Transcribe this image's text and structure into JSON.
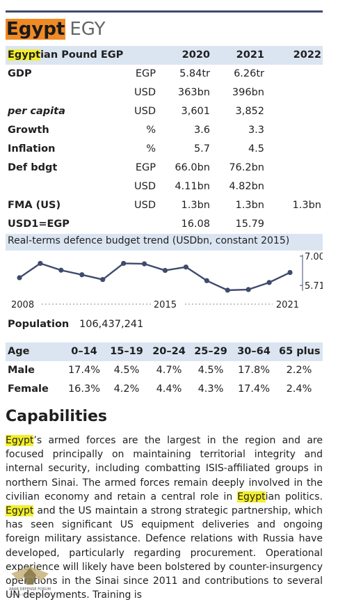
{
  "country": {
    "name": "Egypt",
    "code": "EGY"
  },
  "economics": {
    "currency_prefix": "Egypt",
    "currency_suffix": "ian Pound EGP",
    "years": [
      "2020",
      "2021",
      "2022"
    ],
    "rows": [
      {
        "label": "GDP",
        "style": "bold",
        "unit": "EGP",
        "v2020": "5.84tr",
        "v2021": "6.26tr",
        "v2022": ""
      },
      {
        "label": "",
        "style": "bold",
        "unit": "USD",
        "v2020": "363bn",
        "v2021": "396bn",
        "v2022": ""
      },
      {
        "label": "per capita",
        "style": "ital",
        "unit": "USD",
        "v2020": "3,601",
        "v2021": "3,852",
        "v2022": ""
      },
      {
        "label": "Growth",
        "style": "bold",
        "unit": "%",
        "v2020": "3.6",
        "v2021": "3.3",
        "v2022": ""
      },
      {
        "label": "Inflation",
        "style": "bold",
        "unit": "%",
        "v2020": "5.7",
        "v2021": "4.5",
        "v2022": ""
      },
      {
        "label": "Def bdgt",
        "style": "bold",
        "unit": "EGP",
        "v2020": "66.0bn",
        "v2021": "76.2bn",
        "v2022": ""
      },
      {
        "label": "",
        "style": "bold",
        "unit": "USD",
        "v2020": "4.11bn",
        "v2021": "4.82bn",
        "v2022": ""
      },
      {
        "label": "FMA (US)",
        "style": "bold",
        "unit": "USD",
        "v2020": "1.3bn",
        "v2021": "1.3bn",
        "v2022": "1.3bn"
      },
      {
        "label": "USD1=EGP",
        "style": "bold",
        "unit": "",
        "v2020": "16.08",
        "v2021": "15.79",
        "v2022": ""
      }
    ]
  },
  "chart_data": {
    "type": "line",
    "title": "Real-terms defence budget trend (USDbn, constant 2015)",
    "x": [
      2008,
      2009,
      2010,
      2011,
      2012,
      2013,
      2014,
      2015,
      2016,
      2017,
      2018,
      2019,
      2020,
      2021
    ],
    "values": [
      6.05,
      6.68,
      6.38,
      6.18,
      5.97,
      6.68,
      6.66,
      6.37,
      6.52,
      5.92,
      5.5,
      5.53,
      5.84,
      6.28
    ],
    "x_tick_labels": [
      "2008",
      "2015",
      "2021"
    ],
    "y_tick_labels": [
      "7.00",
      "5.71"
    ],
    "ylim": [
      5.5,
      7.0
    ],
    "line_color": "#3f4b6d"
  },
  "population": {
    "label": "Population",
    "value": "106,437,241"
  },
  "age": {
    "header": [
      "Age",
      "0–14",
      "15–19",
      "20–24",
      "25–29",
      "30–64",
      "65 plus"
    ],
    "male": [
      "Male",
      "17.4%",
      "4.5%",
      "4.7%",
      "4.5%",
      "17.8%",
      "2.2%"
    ],
    "female": [
      "Female",
      "16.3%",
      "4.2%",
      "4.4%",
      "4.3%",
      "17.4%",
      "2.4%"
    ]
  },
  "capabilities": {
    "heading": "Capabilities",
    "s1": "Egypt",
    "s2": "’s armed forces are the largest in the region and are focused principally on maintaining territorial integrity and internal security, including combatting ISIS-affiliated groups in northern Sinai. The armed forces remain deeply involved in the civilian economy and retain a central role in ",
    "s3": "Egypt",
    "s4": "ian politics. ",
    "s5": "Egypt",
    "s6": " and the US maintain a strong strategic partnership, which has seen significant US equipment deliveries and ongoing foreign military assistance. Defence relations with Russia have developed, particularly regarding procurement. Operational experience will likely have been bolstered by counter-insurgency operations in the Sinai since 2011 and contributions to several UN deployments. Training is"
  },
  "watermark": {
    "line1": "ARAB DEFENSE FORUM",
    "line2": "المنتدى العربي للدفاع والتسليح"
  }
}
